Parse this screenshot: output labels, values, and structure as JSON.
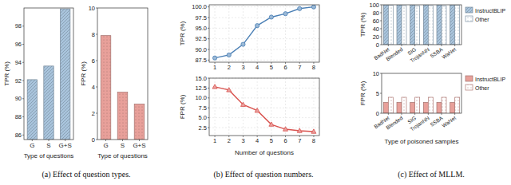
{
  "captions": [
    "(a) Effect of question types.",
    "(b) Effect of question numbers.",
    "(c) Effect of MLLM."
  ],
  "chart_data": [
    {
      "type": "bar",
      "categories": [
        "G",
        "S",
        "G+S"
      ],
      "values": [
        92.1,
        93.6,
        99.9
      ],
      "color": "#a9c4dc",
      "x_label": "Type of questions",
      "y_label": "TPR (%)",
      "ylim": [
        85.5,
        100
      ],
      "yticks": [
        86,
        88,
        90,
        92,
        94,
        96,
        98
      ],
      "grid": false
    },
    {
      "type": "bar",
      "categories": [
        "G",
        "S",
        "G+S"
      ],
      "values": [
        7.9,
        3.6,
        2.7
      ],
      "color": "#e8a09a",
      "x_label": "Type of questions",
      "y_label": "FPR (%)",
      "ylim": [
        0,
        10
      ],
      "yticks": [
        0,
        2,
        4,
        6,
        8,
        10
      ],
      "grid": false
    },
    {
      "type": "line",
      "x": [
        1,
        2,
        3,
        4,
        5,
        6,
        7,
        8
      ],
      "values": [
        88.0,
        88.7,
        91.2,
        95.6,
        97.6,
        98.4,
        99.6,
        100.0
      ],
      "color": "#4a7fb5",
      "marker": "circle",
      "y_label": "TPR (%)",
      "xlim": [
        0.6,
        8.4
      ],
      "xticks": [
        1,
        2,
        3,
        4,
        5,
        6,
        7,
        8
      ],
      "ylim": [
        87,
        100.5
      ],
      "yticks": [
        87.5,
        {
          "value": 90,
          "label": "90.0"
        },
        92.5,
        {
          "value": 95,
          "label": "95.0"
        },
        97.5,
        {
          "value": 100,
          "label": "100.0"
        }
      ],
      "grid": true
    },
    {
      "type": "line",
      "x": [
        1,
        2,
        3,
        4,
        5,
        6,
        7,
        8
      ],
      "values": [
        12.8,
        12.0,
        8.3,
        6.8,
        3.3,
        2.1,
        1.7,
        1.5
      ],
      "color": "#d9534f",
      "marker": "triangle",
      "x_label": "Number of questions",
      "y_label": "FPR (%)",
      "xlim": [
        0.6,
        8.4
      ],
      "xticks": [
        1,
        2,
        3,
        4,
        5,
        6,
        7,
        8
      ],
      "ylim": [
        0.5,
        15
      ],
      "yticks": [
        2.5,
        {
          "value": 5,
          "label": "5.0"
        },
        7.5,
        {
          "value": 10,
          "label": "10.0"
        },
        12.5,
        {
          "value": 15,
          "label": "15.0"
        }
      ],
      "grid": true
    },
    {
      "type": "bar",
      "categories": [
        "BadNet",
        "Blended",
        "SIG",
        "TrojanNN",
        "SSBA",
        "WaNet"
      ],
      "series": [
        {
          "name": "InstructBLIP",
          "color": "#a9c4dc",
          "values": [
            99.9,
            99.9,
            99.9,
            99.9,
            99.9,
            99.9
          ]
        },
        {
          "name": "Other",
          "color": "#ffffff",
          "values": [
            98.7,
            97.9,
            97.0,
            98.0,
            97.3,
            98.6
          ]
        }
      ],
      "y_label": "TPR (%)",
      "ylim": [
        0,
        100
      ],
      "yticks": [
        0,
        20,
        40,
        60,
        80,
        100
      ],
      "legend": "upper right",
      "grid": false
    },
    {
      "type": "bar",
      "categories": [
        "BadNet",
        "Blended",
        "SIG",
        "TrojanNN",
        "SSBA",
        "WaNet"
      ],
      "series": [
        {
          "name": "InstructBLIP",
          "color": "#e8a09a",
          "values": [
            2.7,
            2.7,
            2.7,
            2.7,
            2.7,
            2.7
          ]
        },
        {
          "name": "Other",
          "color": "#ffffff",
          "values": [
            4.0,
            4.0,
            4.0,
            4.0,
            4.0,
            4.0
          ]
        }
      ],
      "x_label": "Type of poisoned samples",
      "y_label": "FPR (%)",
      "ylim": [
        0,
        10
      ],
      "yticks": [
        0,
        5,
        10
      ],
      "legend": "upper right",
      "grid": false
    }
  ]
}
